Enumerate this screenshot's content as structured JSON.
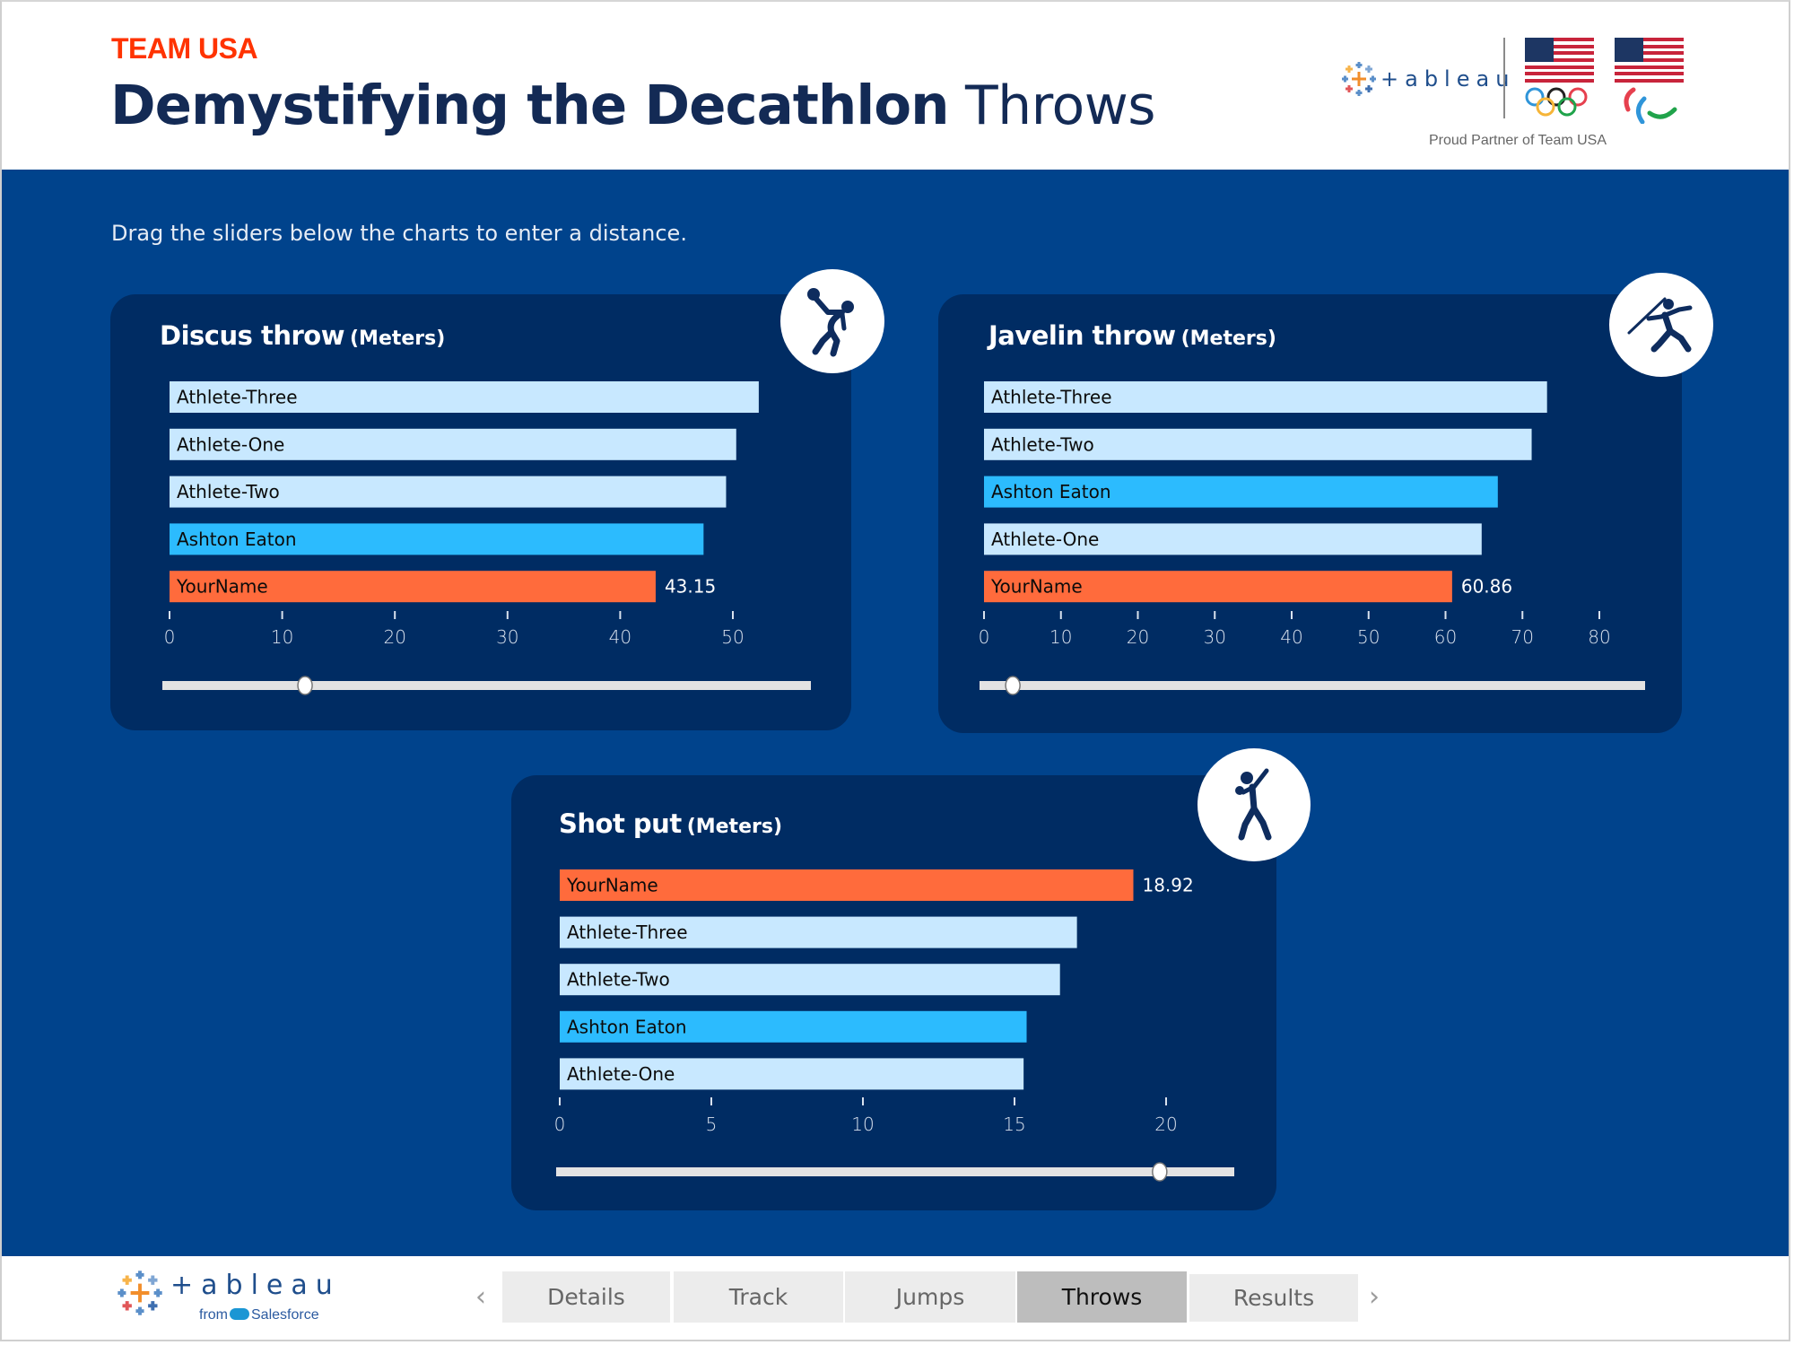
{
  "header": {
    "eyebrow": "TEAM USA",
    "title_bold": "Demystifying the Decathlon",
    "title_light": "Throws",
    "partner_wordmark": "+ableau",
    "partner_text": "Proud Partner of Team USA"
  },
  "instruction": "Drag the sliders below the charts to enter a distance.",
  "colors": {
    "band": "#00438c",
    "panel": "#002c63",
    "athlete_bar": "#c8e8ff",
    "ashton_bar": "#2cbbfe",
    "user_bar": "#ff6b3c",
    "eyebrow": "#ff3300",
    "title": "#132a55"
  },
  "chart_data": [
    {
      "id": "discus",
      "type": "bar",
      "orientation": "horizontal",
      "title": "Discus throw",
      "unit": "(Meters)",
      "icon": "discus-thrower-icon",
      "categories": [
        "Athlete-Three",
        "Athlete-One",
        "Athlete-Two",
        "Ashton Eaton",
        "YourName"
      ],
      "values": [
        52.3,
        50.3,
        49.4,
        47.4,
        43.15
      ],
      "highlight": [
        "athlete",
        "athlete",
        "athlete",
        "ashton",
        "user"
      ],
      "value_labels": [
        "",
        "",
        "",
        "",
        "43.15"
      ],
      "xlim": [
        0,
        50
      ],
      "xticks": [
        0,
        10,
        20,
        30,
        40,
        50
      ],
      "xlabel": "",
      "grid": false,
      "slider": {
        "value": 43.15,
        "position_fraction": 0.22
      }
    },
    {
      "id": "javelin",
      "type": "bar",
      "orientation": "horizontal",
      "title": "Javelin throw",
      "unit": "(Meters)",
      "icon": "javelin-thrower-icon",
      "categories": [
        "Athlete-Three",
        "Athlete-Two",
        "Ashton Eaton",
        "Athlete-One",
        "YourName"
      ],
      "values": [
        73.2,
        71.2,
        66.8,
        64.7,
        60.86
      ],
      "highlight": [
        "athlete",
        "athlete",
        "ashton",
        "athlete",
        "user"
      ],
      "value_labels": [
        "",
        "",
        "",
        "",
        "60.86"
      ],
      "xlim": [
        0,
        80
      ],
      "xticks": [
        0,
        10,
        20,
        30,
        40,
        50,
        60,
        70,
        80
      ],
      "xlabel": "",
      "grid": false,
      "slider": {
        "value": 60.86,
        "position_fraction": 0.05
      }
    },
    {
      "id": "shotput",
      "type": "bar",
      "orientation": "horizontal",
      "title": "Shot put",
      "unit": "(Meters)",
      "icon": "shot-putter-icon",
      "categories": [
        "YourName",
        "Athlete-Three",
        "Athlete-Two",
        "Ashton Eaton",
        "Athlete-One"
      ],
      "values": [
        18.92,
        17.06,
        16.5,
        15.4,
        15.3
      ],
      "highlight": [
        "user",
        "athlete",
        "athlete",
        "ashton",
        "athlete"
      ],
      "value_labels": [
        "18.92",
        "",
        "",
        "",
        ""
      ],
      "xlim": [
        0,
        20
      ],
      "xticks": [
        0,
        5,
        10,
        15,
        20
      ],
      "xlabel": "",
      "grid": false,
      "slider": {
        "value": 18.92,
        "position_fraction": 0.89
      }
    }
  ],
  "footer": {
    "logo_wordmark": "+ableau",
    "logo_from": "from",
    "logo_brand": "Salesforce",
    "prev_label": "‹",
    "next_label": "›",
    "tabs": [
      {
        "label": "Details",
        "active": false
      },
      {
        "label": "Track",
        "active": false
      },
      {
        "label": "Jumps",
        "active": false
      },
      {
        "label": "Throws",
        "active": true
      },
      {
        "label": "Results",
        "active": false
      }
    ]
  }
}
